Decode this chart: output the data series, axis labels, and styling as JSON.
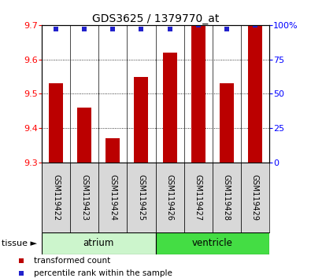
{
  "title": "GDS3625 / 1379770_at",
  "samples": [
    "GSM119422",
    "GSM119423",
    "GSM119424",
    "GSM119425",
    "GSM119426",
    "GSM119427",
    "GSM119428",
    "GSM119429"
  ],
  "bar_values": [
    9.53,
    9.46,
    9.37,
    9.55,
    9.62,
    9.7,
    9.53,
    9.7
  ],
  "percentile_values": [
    97,
    97,
    97,
    97,
    97,
    100,
    97,
    100
  ],
  "baseline": 9.3,
  "ylim_left": [
    9.3,
    9.7
  ],
  "ylim_right": [
    0,
    100
  ],
  "yticks_left": [
    9.3,
    9.4,
    9.5,
    9.6,
    9.7
  ],
  "yticks_right": [
    0,
    25,
    50,
    75,
    100
  ],
  "bar_color": "#bb0000",
  "percentile_color": "#2222cc",
  "atrium_color": "#ccf5cc",
  "ventricle_color": "#44dd44",
  "sample_box_color": "#d8d8d8",
  "tissue_label": "tissue ►",
  "legend_bar_label": "transformed count",
  "legend_pct_label": "percentile rank within the sample"
}
